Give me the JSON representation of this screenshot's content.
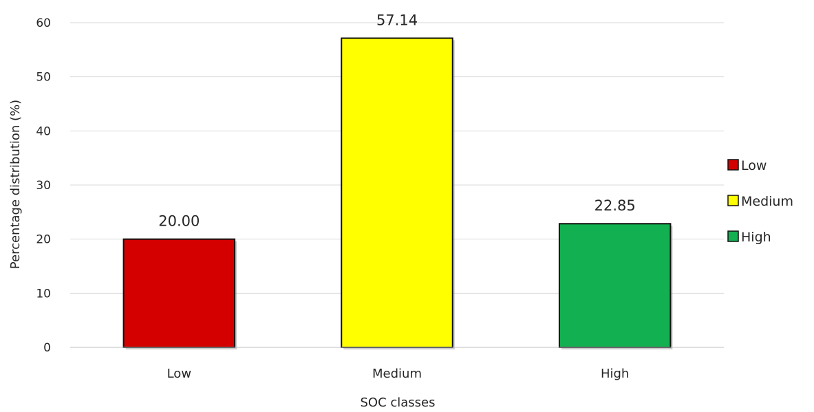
{
  "chart_data": {
    "type": "bar",
    "title": "",
    "xlabel": "SOC classes",
    "ylabel": "Percentage distribution (%)",
    "categories": [
      "Low",
      "Medium",
      "High"
    ],
    "values": [
      20.0,
      57.14,
      22.85
    ],
    "value_labels": [
      "20.00",
      "57.14",
      "22.85"
    ],
    "colors": [
      "#d40000",
      "#ffff00",
      "#12b050"
    ],
    "ylim": [
      0,
      60
    ],
    "yticks": [
      0,
      10,
      20,
      30,
      40,
      50,
      60
    ],
    "grid": true,
    "legend": {
      "position": "right",
      "entries": [
        "Low",
        "Medium",
        "High"
      ]
    }
  }
}
